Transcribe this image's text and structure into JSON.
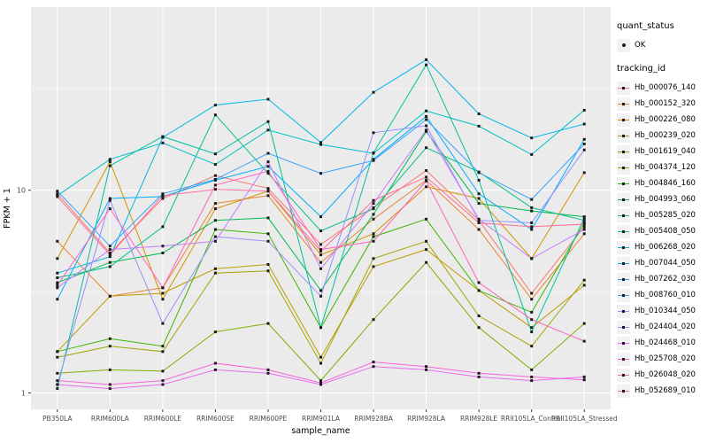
{
  "chart_data": {
    "type": "line",
    "title": "",
    "xlabel": "sample_name",
    "ylabel": "FPKM + 1",
    "y_scale": "log10",
    "y_ticks": [
      1,
      10
    ],
    "y_tick_labels": [
      "1",
      "10"
    ],
    "y_minor_ticks": [
      3.162,
      31.623
    ],
    "ylim": [
      0.83,
      80
    ],
    "grid": true,
    "legend_position": "right",
    "categories": [
      "PB350LA",
      "RRIM600LA",
      "RRIM600LE",
      "RRIM600SE",
      "RRIM600PE",
      "RRIM901LA",
      "RRIM928BA",
      "RRIM928LA",
      "RRIM928LE",
      "RRII105LA_Control",
      "RRII105LA_Stressed"
    ],
    "series": [
      {
        "name": "Hb_000076_140",
        "color": "#F8766D",
        "values": [
          9.6,
          4.9,
          9.1,
          11.8,
          10.2,
          5.4,
          8.2,
          12.5,
          7.1,
          3.1,
          6.6
        ]
      },
      {
        "name": "Hb_000152_320",
        "color": "#EA8331",
        "values": [
          5.6,
          3.0,
          3.3,
          8.6,
          9.4,
          4.4,
          7.2,
          11.2,
          6.4,
          2.9,
          6.1
        ]
      },
      {
        "name": "Hb_000226_080",
        "color": "#D89000",
        "values": [
          4.6,
          13.8,
          2.9,
          8.1,
          9.9,
          4.8,
          6.1,
          10.4,
          9.1,
          4.6,
          12.2
        ]
      },
      {
        "name": "Hb_000239_020",
        "color": "#C09B00",
        "values": [
          1.6,
          3.0,
          3.1,
          4.1,
          4.3,
          1.5,
          4.2,
          5.1,
          3.2,
          2.1,
          3.4
        ]
      },
      {
        "name": "Hb_001619_040",
        "color": "#A3A500",
        "values": [
          1.5,
          1.7,
          1.6,
          3.9,
          4.0,
          1.4,
          4.6,
          5.6,
          2.4,
          1.7,
          3.6
        ]
      },
      {
        "name": "Hb_004374_120",
        "color": "#7CAE00",
        "values": [
          1.25,
          1.3,
          1.28,
          2.0,
          2.2,
          1.15,
          2.3,
          4.4,
          2.1,
          1.3,
          2.2
        ]
      },
      {
        "name": "Hb_004846_160",
        "color": "#39B600",
        "values": [
          1.6,
          1.85,
          1.7,
          6.4,
          6.1,
          2.1,
          5.9,
          7.2,
          3.2,
          2.5,
          6.9
        ]
      },
      {
        "name": "Hb_004993_060",
        "color": "#00BB4E",
        "values": [
          3.5,
          4.4,
          4.9,
          7.1,
          7.3,
          3.2,
          7.6,
          19.5,
          8.6,
          7.9,
          7.4
        ]
      },
      {
        "name": "Hb_005285_020",
        "color": "#00C087",
        "values": [
          3.7,
          4.2,
          6.6,
          23.5,
          12.1,
          6.3,
          8.1,
          16.2,
          12.3,
          8.2,
          7.1
        ]
      },
      {
        "name": "Hb_005408_050",
        "color": "#00C19F",
        "values": [
          1.05,
          13.2,
          18.4,
          15.1,
          21.8,
          2.1,
          15.3,
          41.5,
          11.2,
          2.0,
          7.3
        ]
      },
      {
        "name": "Hb_006268_020",
        "color": "#00BFC4",
        "values": [
          9.4,
          14.2,
          17.1,
          13.4,
          19.8,
          16.8,
          15.2,
          24.6,
          20.7,
          15.0,
          24.8
        ]
      },
      {
        "name": "Hb_007044_050",
        "color": "#00B8E7",
        "values": [
          3.9,
          4.7,
          18.2,
          26.3,
          28.1,
          17.2,
          30.4,
          44.0,
          23.8,
          18.1,
          21.2
        ]
      },
      {
        "name": "Hb_007262_030",
        "color": "#00ACFC",
        "values": [
          2.9,
          9.1,
          9.3,
          11.2,
          13.1,
          7.4,
          14.2,
          23.1,
          9.6,
          6.4,
          17.8
        ]
      },
      {
        "name": "Hb_008760_010",
        "color": "#35A2FF",
        "values": [
          9.9,
          5.3,
          9.6,
          11.3,
          15.2,
          12.1,
          14.0,
          22.3,
          12.2,
          9.0,
          16.9
        ]
      },
      {
        "name": "Hb_010344_050",
        "color": "#9590FF",
        "values": [
          1.1,
          8.9,
          2.2,
          5.9,
          5.6,
          3.0,
          19.2,
          20.8,
          7.1,
          6.9,
          15.8
        ]
      },
      {
        "name": "Hb_024404_020",
        "color": "#C77CFF",
        "values": [
          3.3,
          5.1,
          5.3,
          5.6,
          13.8,
          4.1,
          8.6,
          19.8,
          7.2,
          4.6,
          6.4
        ]
      },
      {
        "name": "Hb_024468_010",
        "color": "#E76BF3",
        "values": [
          1.1,
          1.05,
          1.1,
          1.3,
          1.25,
          1.1,
          1.35,
          1.3,
          1.2,
          1.15,
          1.2
        ]
      },
      {
        "name": "Hb_025708_020",
        "color": "#FA62DB",
        "values": [
          1.15,
          1.1,
          1.15,
          1.4,
          1.3,
          1.12,
          1.42,
          1.35,
          1.25,
          1.2,
          1.16
        ]
      },
      {
        "name": "Hb_026048_020",
        "color": "#FF62BC",
        "values": [
          3.4,
          8.1,
          3.3,
          10.6,
          12.4,
          5.1,
          5.6,
          11.1,
          3.5,
          2.3,
          1.8
        ]
      },
      {
        "name": "Hb_052689_010",
        "color": "#FF6A98",
        "values": [
          9.3,
          4.8,
          9.4,
          10.1,
          9.9,
          5.0,
          8.9,
          11.6,
          6.9,
          6.6,
          6.8
        ]
      }
    ],
    "legend": {
      "quant_status_title": "quant_status",
      "quant_status_items": [
        {
          "label": "OK"
        }
      ],
      "tracking_title": "tracking_id"
    },
    "colors": {
      "panel_bg": "#EBEBEB",
      "grid": "#FFFFFF",
      "point": "#1A1A1A",
      "axis_text": "#4D4D4D",
      "title_text": "#000000",
      "legend_key_bg": "#F2F2F2"
    }
  }
}
